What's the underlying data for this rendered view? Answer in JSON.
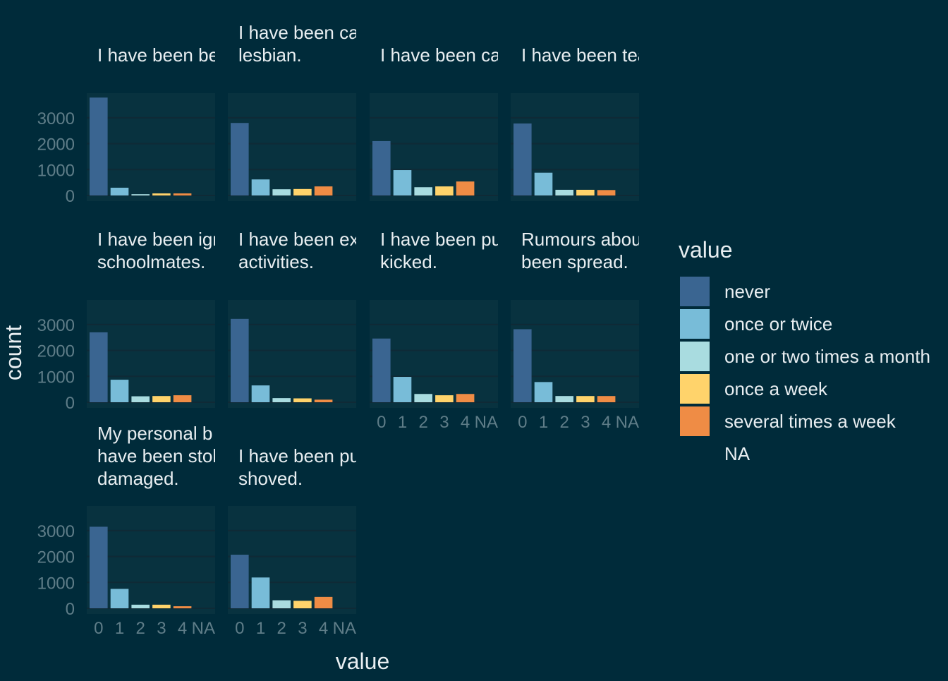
{
  "chart_data": {
    "type": "bar",
    "layout": "facet_wrap",
    "ncol": 4,
    "xlabel": "value",
    "ylabel": "count",
    "categories": [
      "0",
      "1",
      "2",
      "3",
      "4",
      "NA"
    ],
    "ylim": [
      0,
      3800
    ],
    "yticks": [
      "0",
      "1000",
      "2000",
      "3000"
    ],
    "grid": true,
    "legend_position": "right",
    "legend": {
      "title": "value",
      "entries": [
        {
          "label": "never",
          "color": "#3a6591"
        },
        {
          "label": "once or twice",
          "color": "#78bcd8"
        },
        {
          "label": "one or two times a month",
          "color": "#a9dce0"
        },
        {
          "label": "once a week",
          "color": "#ffd36b"
        },
        {
          "label": "several times a week",
          "color": "#ef8c45"
        },
        {
          "label": "NA",
          "color": ""
        }
      ]
    },
    "colors": {
      "background": "#002b3a",
      "panel": "#08323f",
      "grid": "#0f2a36"
    },
    "panels": [
      {
        "title_lines": [
          "I have been be"
        ],
        "values": [
          3780,
          300,
          50,
          80,
          80,
          0
        ]
      },
      {
        "title_lines": [
          "I have been ca",
          "lesbian."
        ],
        "values": [
          2800,
          620,
          240,
          250,
          350,
          0
        ]
      },
      {
        "title_lines": [
          "I have been ca"
        ],
        "values": [
          2100,
          980,
          320,
          350,
          540,
          0
        ]
      },
      {
        "title_lines": [
          "I have been tea"
        ],
        "values": [
          2780,
          880,
          220,
          220,
          210,
          0
        ]
      },
      {
        "title_lines": [
          "I have been igr",
          "schoolmates."
        ],
        "values": [
          2700,
          870,
          230,
          240,
          270,
          0
        ]
      },
      {
        "title_lines": [
          "I have been ex",
          "activities."
        ],
        "values": [
          3220,
          650,
          160,
          150,
          100,
          0
        ]
      },
      {
        "title_lines": [
          "I have been pu",
          "kicked."
        ],
        "values": [
          2460,
          980,
          320,
          270,
          320,
          0
        ]
      },
      {
        "title_lines": [
          "Rumours abou",
          "been spread."
        ],
        "values": [
          2820,
          780,
          240,
          240,
          240,
          0
        ]
      },
      {
        "title_lines": [
          "My personal b",
          "have been stol",
          "damaged."
        ],
        "values": [
          3150,
          750,
          140,
          140,
          80,
          0
        ]
      },
      {
        "title_lines": [
          "I have been pu",
          "shoved."
        ],
        "values": [
          2070,
          1190,
          310,
          290,
          440,
          0
        ]
      }
    ]
  }
}
